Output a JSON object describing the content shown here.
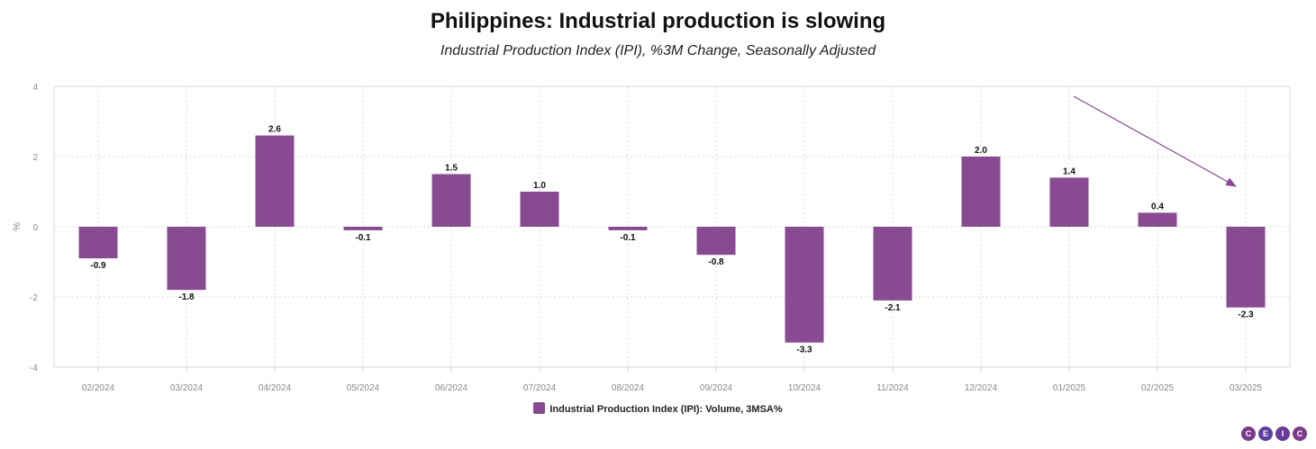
{
  "chart_data": {
    "type": "bar",
    "title": "Philippines: Industrial production is slowing",
    "subtitle": "Industrial Production Index (IPI), %3M Change, Seasonally Adjusted",
    "xlabel": "",
    "ylabel": "%",
    "ylim": [
      -4,
      4
    ],
    "yticks": [
      4,
      2,
      0,
      -2,
      -4
    ],
    "grid": true,
    "categories": [
      "02/2024",
      "03/2024",
      "04/2024",
      "05/2024",
      "06/2024",
      "07/2024",
      "08/2024",
      "09/2024",
      "10/2024",
      "11/2024",
      "12/2024",
      "01/2025",
      "02/2025",
      "03/2025"
    ],
    "series": [
      {
        "name": "Industrial Production Index (IPI): Volume, 3MSA%",
        "values": [
          -0.9,
          -1.8,
          2.6,
          -0.1,
          1.5,
          1.0,
          -0.1,
          -0.8,
          -3.3,
          -2.1,
          2.0,
          1.4,
          0.4,
          -2.3
        ],
        "labels": [
          "-0.9",
          "-1.8",
          "2.6",
          "-0.1",
          "1.5",
          "1.0",
          "-0.1",
          "-0.8",
          "-3.3",
          "-2.1",
          "2.0",
          "1.4",
          "0.4",
          "-2.3"
        ],
        "color": "#884a91"
      }
    ],
    "annotations": [
      {
        "type": "arrow",
        "description": "downward trend arrow from 01/2025 toward 03/2025"
      }
    ],
    "legend_position": "bottom"
  },
  "logo": {
    "letters": [
      "C",
      "E",
      "I",
      "C"
    ],
    "colors": [
      "#7b3a8c",
      "#5a3fa0",
      "#6a3a9a",
      "#7b3a8c"
    ]
  }
}
